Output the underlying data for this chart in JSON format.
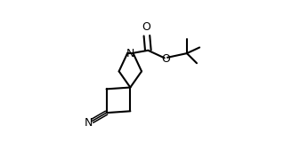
{
  "background_color": "#ffffff",
  "line_color": "#000000",
  "line_width": 1.5,
  "font_size": 8.5,
  "figsize": [
    3.37,
    1.86
  ],
  "dpi": 100,
  "xlim": [
    0,
    1
  ],
  "ylim": [
    0,
    1
  ]
}
